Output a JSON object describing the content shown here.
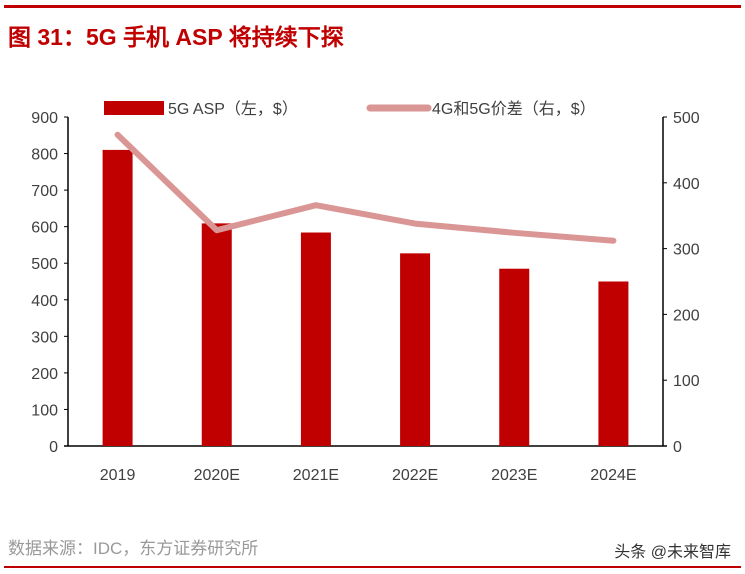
{
  "title": "图 31：5G 手机 ASP 将持续下探",
  "source": "数据来源：IDC，东方证券研究所",
  "watermark": "头条 @未来智库",
  "colors": {
    "accent": "#c00000",
    "bar": "#c00000",
    "line": "#d99694"
  },
  "chart_data": {
    "type": "bar+line",
    "categories": [
      "2019",
      "2020E",
      "2021E",
      "2022E",
      "2023E",
      "2024E"
    ],
    "series": [
      {
        "name": "5G ASP（左，$）",
        "type": "bar",
        "axis": "left",
        "values": [
          810,
          609,
          584,
          527,
          485,
          450
        ]
      },
      {
        "name": "4G和5G价差（右，$）",
        "type": "line",
        "axis": "right",
        "values": [
          473,
          328,
          366,
          338,
          324,
          312
        ]
      }
    ],
    "y_left": {
      "range": [
        0,
        900
      ],
      "ticks": [
        "0",
        "100",
        "200",
        "300",
        "400",
        "500",
        "600",
        "700",
        "800",
        "900"
      ]
    },
    "y_right": {
      "range": [
        0,
        500
      ],
      "ticks": [
        "0",
        "100",
        "200",
        "300",
        "400",
        "500"
      ]
    },
    "legend": "top",
    "grid": false
  }
}
